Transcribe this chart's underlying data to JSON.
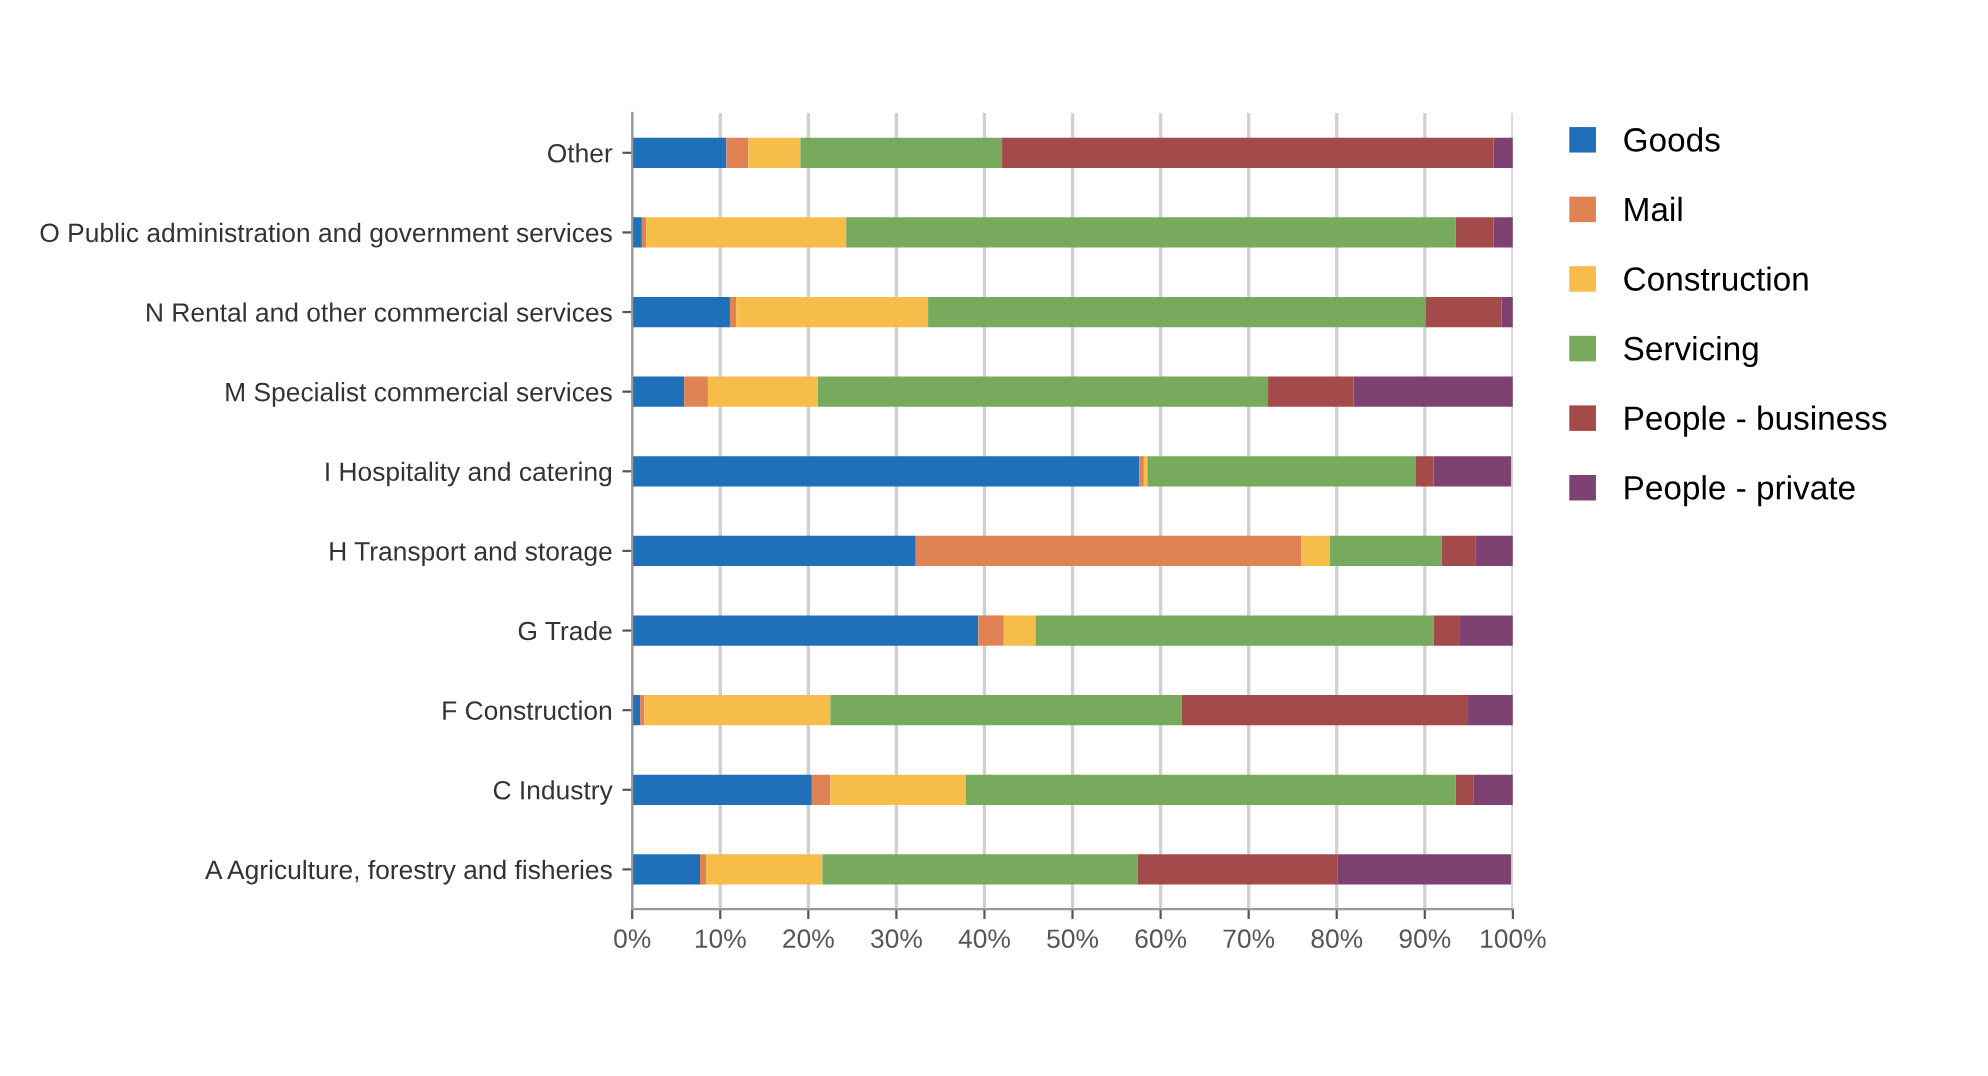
{
  "chart_data": {
    "type": "bar",
    "orientation": "horizontal",
    "stacked": true,
    "categories": [
      "Other",
      "O Public administration and government services",
      "N Rental and other commercial services",
      "M Specialist commercial services",
      "I Hospitality and catering",
      "H Transport and storage",
      "G Trade",
      "F Construction",
      "C Industry",
      "A Agriculture, forestry and fisheries"
    ],
    "series": [
      {
        "name": "Goods",
        "color": "#1f70b8",
        "values": [
          10.7,
          1.1,
          11.1,
          5.9,
          57.6,
          32.2,
          39.3,
          0.9,
          20.4,
          7.7
        ]
      },
      {
        "name": "Mail",
        "color": "#e08354",
        "values": [
          2.5,
          0.5,
          0.7,
          2.7,
          0.5,
          43.8,
          2.9,
          0.5,
          2.1,
          0.7
        ]
      },
      {
        "name": "Construction",
        "color": "#f6bd4b",
        "values": [
          5.9,
          22.7,
          21.8,
          12.5,
          0.4,
          3.2,
          3.6,
          21.1,
          15.4,
          13.2
        ]
      },
      {
        "name": "Servicing",
        "color": "#77aa5d",
        "values": [
          22.9,
          69.2,
          56.5,
          51.1,
          30.5,
          12.7,
          45.2,
          39.9,
          55.6,
          35.8
        ]
      },
      {
        "name": "People - business",
        "color": "#a34a4b",
        "values": [
          55.8,
          4.3,
          8.6,
          9.7,
          2.0,
          3.9,
          2.9,
          32.5,
          2.0,
          22.7
        ]
      },
      {
        "name": "People - private",
        "color": "#7e4272",
        "values": [
          2.2,
          2.2,
          1.3,
          18.1,
          8.8,
          4.2,
          6.1,
          5.1,
          4.5,
          19.7
        ]
      }
    ],
    "xlim": [
      0,
      100
    ],
    "xticks": [
      {
        "value": 0,
        "label": "0%"
      },
      {
        "value": 10,
        "label": "10%"
      },
      {
        "value": 20,
        "label": "20%"
      },
      {
        "value": 30,
        "label": "30%"
      },
      {
        "value": 40,
        "label": "40%"
      },
      {
        "value": 50,
        "label": "50%"
      },
      {
        "value": 60,
        "label": "60%"
      },
      {
        "value": 70,
        "label": "70%"
      },
      {
        "value": 80,
        "label": "80%"
      },
      {
        "value": 90,
        "label": "90%"
      },
      {
        "value": 100,
        "label": "100%"
      }
    ],
    "grid": "x",
    "legend": "right"
  }
}
